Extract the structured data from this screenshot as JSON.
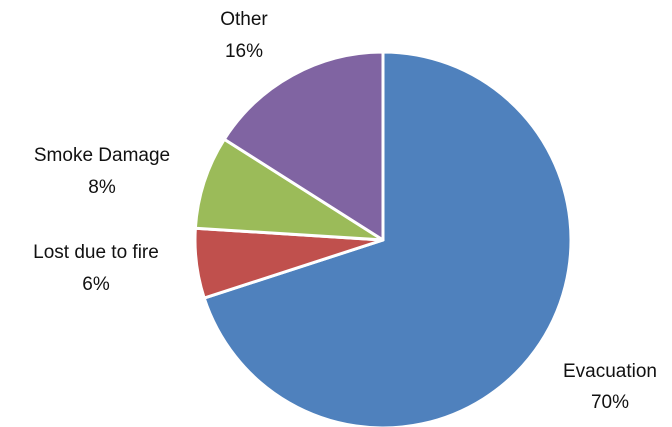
{
  "chart_data": {
    "type": "pie",
    "title": "",
    "slices": [
      {
        "label": "Evacuation",
        "value": 70,
        "value_label": "70%",
        "color": "#4F81BD"
      },
      {
        "label": "Lost due to fire",
        "value": 6,
        "value_label": "6%",
        "color": "#C0504D"
      },
      {
        "label": "Smoke Damage",
        "value": 8,
        "value_label": "8%",
        "color": "#9BBB59"
      },
      {
        "label": "Other",
        "value": 16,
        "value_label": "16%",
        "color": "#8064A2"
      }
    ],
    "start_angle": "12 o'clock",
    "direction": "clockwise",
    "slice_border_color": "#FFFFFF",
    "legend": "none"
  }
}
